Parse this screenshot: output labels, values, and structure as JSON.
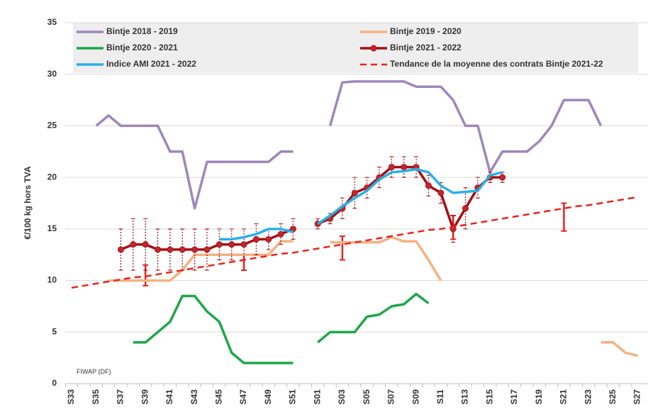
{
  "chart_data": {
    "type": "line",
    "y_label": "€/100 kg hors TVA",
    "source": "FIWAP (DF)",
    "ylim": [
      0,
      35
    ],
    "yticks": [
      0,
      5,
      10,
      15,
      20,
      25,
      30,
      35
    ],
    "grid": true,
    "categories": [
      "S33",
      null,
      "S35",
      null,
      "S37",
      null,
      "S39",
      null,
      "S41",
      null,
      "S43",
      null,
      "S45",
      null,
      "S47",
      null,
      "S49",
      null,
      "S51",
      null,
      "S01",
      null,
      "S03",
      null,
      "S05",
      null,
      "S07",
      null,
      "S09",
      null,
      "S11",
      null,
      "S13",
      null,
      "S15",
      null,
      "S17",
      null,
      "S19",
      null,
      "S21",
      null,
      "S23",
      null,
      "S25",
      null,
      "S27"
    ],
    "series": [
      {
        "name": "Bintje 2018 - 2019",
        "color": "#9d87bb",
        "values": [
          null,
          null,
          25,
          26,
          25,
          25,
          25,
          25,
          22.5,
          22.5,
          17,
          21.5,
          21.5,
          21.5,
          21.5,
          21.5,
          21.5,
          22.5,
          22.5,
          null,
          null,
          25,
          29.2,
          29.3,
          29.3,
          29.3,
          29.3,
          29.3,
          28.8,
          28.8,
          28.8,
          27.5,
          25,
          25,
          20.5,
          22.5,
          22.5,
          22.5,
          23.5,
          25,
          27.5,
          27.5,
          27.5,
          25,
          null,
          null,
          null
        ]
      },
      {
        "name": "Bintje 2019 - 2020",
        "color": "#f4b183",
        "values": [
          null,
          null,
          null,
          10,
          10,
          10,
          10,
          10,
          10,
          11,
          12.5,
          12.5,
          12.5,
          12.5,
          12.5,
          12.5,
          12.5,
          13.8,
          13.8,
          null,
          null,
          13.7,
          13.7,
          13.7,
          13.7,
          13.7,
          14.2,
          13.8,
          13.8,
          12,
          10,
          null,
          null,
          null,
          null,
          null,
          null,
          null,
          null,
          null,
          null,
          null,
          null,
          4,
          4,
          3,
          2.7
        ]
      },
      {
        "name": "Bintje 2020 - 2021",
        "color": "#1fa64a",
        "values": [
          null,
          null,
          null,
          null,
          null,
          4,
          4,
          5,
          6,
          8.5,
          8.5,
          7,
          6,
          3,
          2,
          2,
          2,
          2,
          2,
          null,
          4,
          5,
          5,
          5,
          6.5,
          6.7,
          7.5,
          7.7,
          8.7,
          7.8,
          null,
          null,
          null,
          null,
          null,
          null,
          null,
          null,
          null,
          null,
          null,
          null,
          null,
          null,
          null,
          null,
          null
        ]
      },
      {
        "name": "Bintje 2021 - 2022",
        "color": "#a50f15",
        "values": [
          null,
          null,
          null,
          null,
          13,
          13.5,
          13.5,
          13,
          13,
          13,
          13,
          13,
          13.5,
          13.5,
          13.5,
          14,
          14,
          14.5,
          15,
          null,
          15.5,
          16,
          17,
          18.5,
          19,
          20,
          21,
          21,
          21,
          19.2,
          18.5,
          15,
          17,
          19,
          20,
          20,
          null,
          null,
          null,
          null,
          null,
          null,
          null,
          null,
          null,
          null,
          null
        ],
        "errors": [
          null,
          null,
          null,
          null,
          2,
          2.5,
          2.5,
          2,
          2,
          2,
          2,
          2,
          1.5,
          1.5,
          1.5,
          1.5,
          1,
          1,
          1,
          null,
          0.5,
          0.5,
          1,
          1.5,
          1,
          1,
          1,
          1,
          1,
          1,
          1,
          1.3,
          2,
          1,
          0.5,
          0.5,
          null,
          null,
          null,
          null,
          null,
          null,
          null,
          null,
          null,
          null,
          null
        ]
      },
      {
        "name": "Indice AMI 2021 - 2022",
        "color": "#2ab0e6",
        "values": [
          null,
          null,
          null,
          null,
          null,
          null,
          null,
          null,
          null,
          null,
          null,
          null,
          14,
          14,
          14.2,
          14.5,
          15,
          15,
          14.7,
          null,
          15.5,
          16.3,
          17.2,
          18,
          18.7,
          19.8,
          20.5,
          20.6,
          20.8,
          20.5,
          19.2,
          18.5,
          18.6,
          18.7,
          20.2,
          20.5,
          null,
          null,
          null,
          null,
          null,
          null,
          null,
          null,
          null,
          null,
          null
        ]
      },
      {
        "name": "Tendance de la moyenne des contrats Bintje 2021-22",
        "color": "#e8231e",
        "dashed": true,
        "values": [
          9.3,
          9.5,
          9.7,
          9.9,
          10.1,
          10.3,
          10.4,
          10.6,
          10.8,
          11.0,
          11.2,
          11.4,
          11.6,
          11.8,
          12.0,
          12.2,
          12.4,
          12.6,
          12.7,
          12.9,
          13.1,
          13.3,
          13.5,
          13.7,
          13.9,
          14.1,
          14.3,
          14.5,
          14.7,
          14.9,
          15.0,
          15.2,
          15.4,
          15.6,
          15.8,
          16.0,
          16.2,
          16.4,
          16.6,
          16.8,
          17.0,
          17.2,
          17.3,
          17.5,
          17.7,
          17.9,
          18.1
        ]
      }
    ],
    "ranges": {
      "color": "#e8231e",
      "low": [
        null,
        null,
        null,
        null,
        null,
        null,
        9.5,
        null,
        null,
        null,
        null,
        null,
        null,
        null,
        11,
        null,
        null,
        null,
        null,
        null,
        null,
        null,
        12,
        null,
        null,
        null,
        null,
        null,
        null,
        null,
        null,
        14,
        null,
        null,
        null,
        null,
        null,
        null,
        null,
        null,
        14.8,
        null,
        null,
        null,
        null,
        null,
        null
      ],
      "high": [
        null,
        null,
        null,
        null,
        null,
        null,
        11.5,
        null,
        null,
        null,
        null,
        null,
        null,
        null,
        12.5,
        null,
        null,
        null,
        null,
        null,
        null,
        null,
        14.3,
        null,
        null,
        null,
        null,
        null,
        null,
        null,
        null,
        16.3,
        null,
        null,
        null,
        null,
        null,
        null,
        null,
        null,
        17.5,
        null,
        null,
        null,
        null,
        null,
        null
      ]
    }
  }
}
